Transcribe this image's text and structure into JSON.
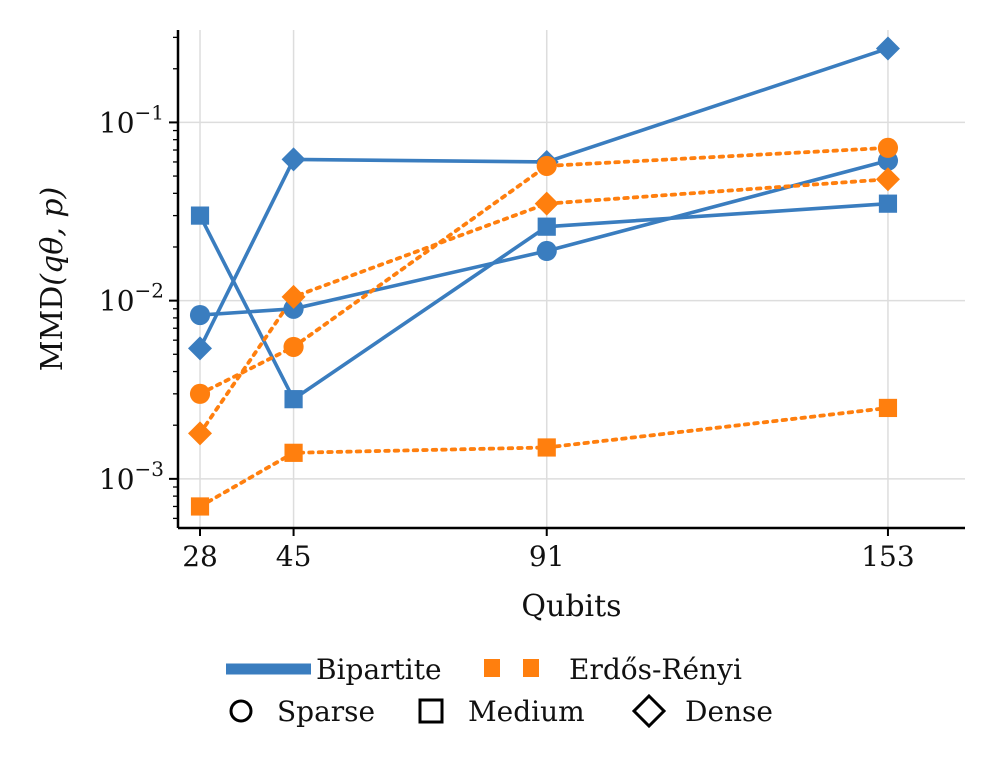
{
  "chart_data": {
    "type": "line",
    "title": "",
    "xlabel": "Qubits",
    "ylabel_prefix": "MMD",
    "ylabel_args": "(qθ, p)",
    "yscale": "log",
    "ylim": [
      0.00053,
      0.33
    ],
    "xlim": [
      24,
      167
    ],
    "x_ticks": [
      28,
      45,
      91,
      153
    ],
    "y_ticks": [
      {
        "value": 0.001,
        "mantissa": "10",
        "exponent": "−3"
      },
      {
        "value": 0.01,
        "mantissa": "10",
        "exponent": "−2"
      },
      {
        "value": 0.1,
        "mantissa": "10",
        "exponent": "−1"
      }
    ],
    "grid": true,
    "colors": {
      "bipartite": "#3a7dbf",
      "erdos_renyi": "#ff7f0e"
    },
    "series": [
      {
        "name": "Bipartite Sparse",
        "graph": "bipartite",
        "density": "sparse",
        "marker": "circle",
        "linestyle": "solid",
        "x": [
          28,
          45,
          91,
          153
        ],
        "y": [
          0.0083,
          0.009,
          0.019,
          0.061
        ]
      },
      {
        "name": "Bipartite Medium",
        "graph": "bipartite",
        "density": "medium",
        "marker": "square",
        "linestyle": "solid",
        "x": [
          28,
          45,
          91,
          153
        ],
        "y": [
          0.03,
          0.0028,
          0.026,
          0.035
        ]
      },
      {
        "name": "Bipartite Dense",
        "graph": "bipartite",
        "density": "dense",
        "marker": "diamond",
        "linestyle": "solid",
        "x": [
          28,
          45,
          91,
          153
        ],
        "y": [
          0.0054,
          0.062,
          0.06,
          0.26
        ]
      },
      {
        "name": "Erdős-Rényi Sparse",
        "graph": "erdos_renyi",
        "density": "sparse",
        "marker": "circle",
        "linestyle": "dotted",
        "x": [
          28,
          45,
          91,
          153
        ],
        "y": [
          0.003,
          0.0055,
          0.057,
          0.072
        ]
      },
      {
        "name": "Erdős-Rényi Medium",
        "graph": "erdos_renyi",
        "density": "medium",
        "marker": "square",
        "linestyle": "dotted",
        "x": [
          28,
          45,
          91,
          153
        ],
        "y": [
          0.0007,
          0.0014,
          0.0015,
          0.0025
        ]
      },
      {
        "name": "Erdős-Rényi Dense",
        "graph": "erdos_renyi",
        "density": "dense",
        "marker": "diamond",
        "linestyle": "dotted",
        "x": [
          28,
          45,
          91,
          153
        ],
        "y": [
          0.0018,
          0.0105,
          0.035,
          0.048
        ]
      }
    ],
    "legend": {
      "placement": "bottom-center",
      "graphs": [
        {
          "label": "Bipartite",
          "key": "bipartite",
          "linestyle": "solid"
        },
        {
          "label": "Erdős-Rényi",
          "key": "erdos_renyi",
          "linestyle": "dotted"
        }
      ],
      "densities": [
        {
          "label": "Sparse",
          "marker": "circle"
        },
        {
          "label": "Medium",
          "marker": "square"
        },
        {
          "label": "Dense",
          "marker": "diamond"
        }
      ]
    }
  }
}
